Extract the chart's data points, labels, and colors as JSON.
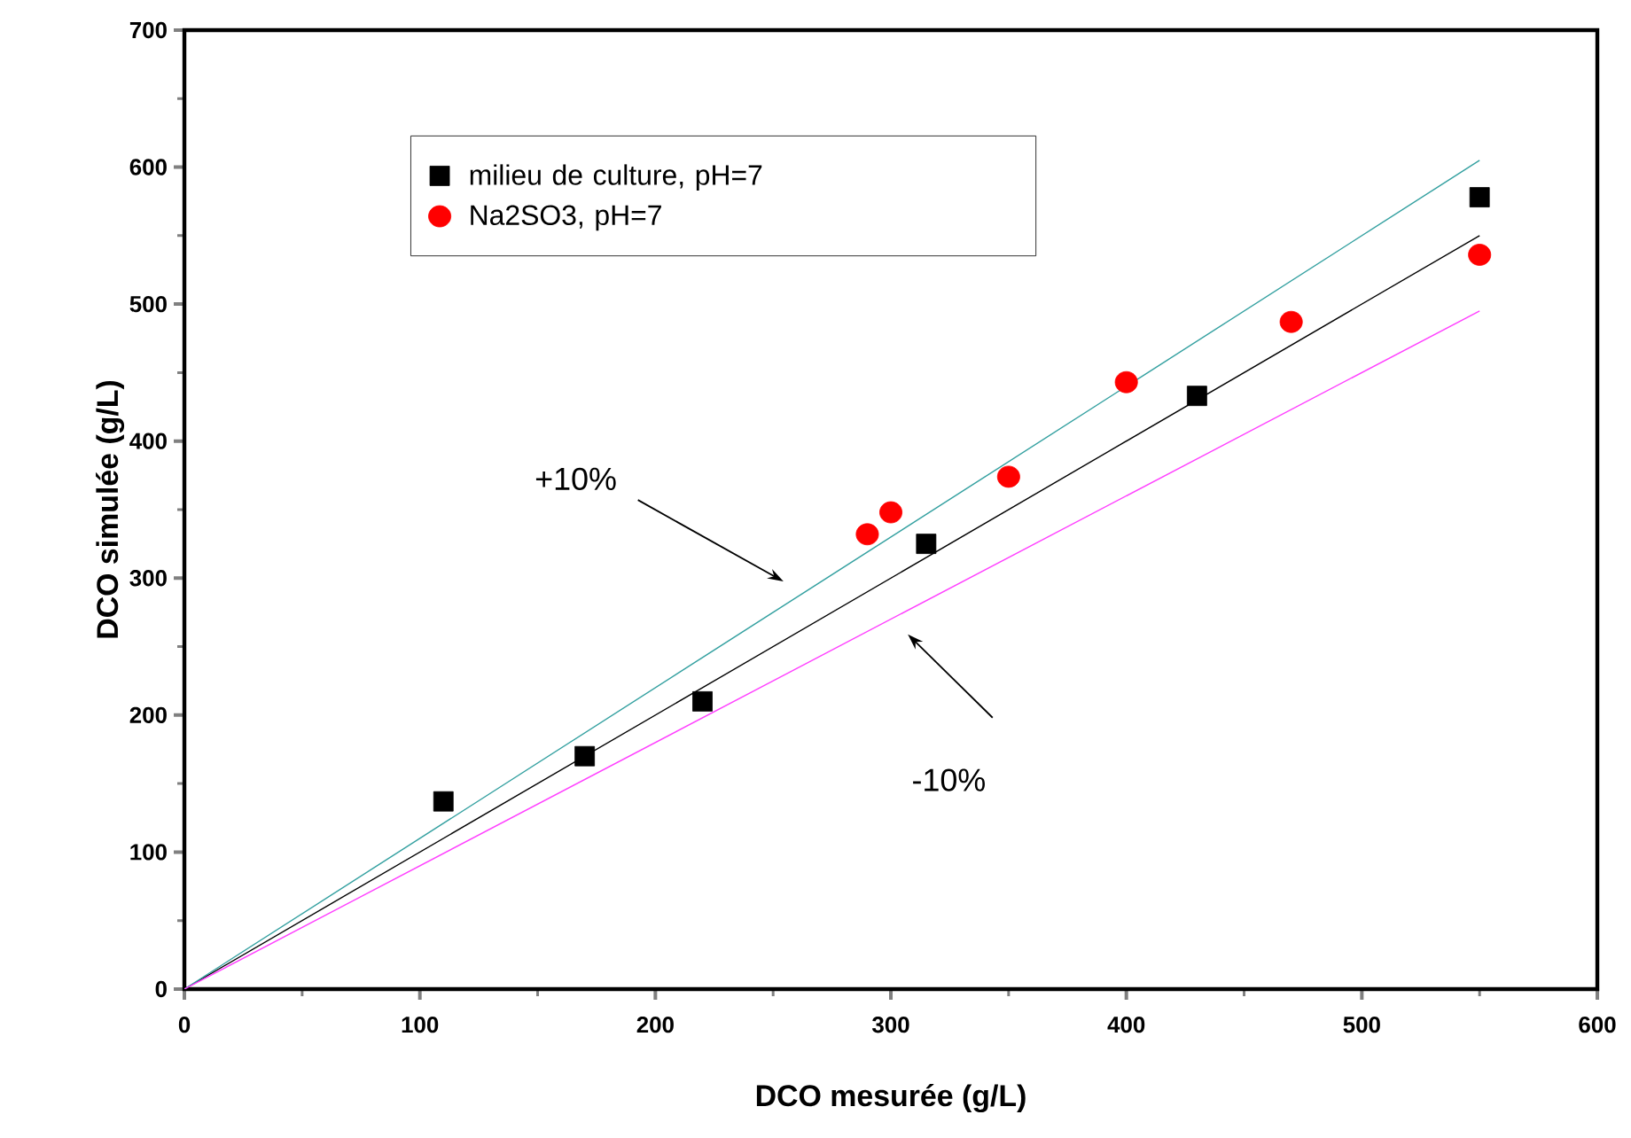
{
  "chart_data": {
    "type": "scatter",
    "xlabel": "DCO mesurée (g/L)",
    "ylabel": "DCO simulée (g/L)",
    "xlim": [
      0,
      600
    ],
    "ylim": [
      0,
      700
    ],
    "xticks": [
      0,
      100,
      200,
      300,
      400,
      500,
      600
    ],
    "yticks": [
      0,
      100,
      200,
      300,
      400,
      500,
      600,
      700
    ],
    "grid": false,
    "legend": "top left",
    "series": [
      {
        "name": "milieu de culture, pH=7",
        "color": "#000000",
        "marker": "square",
        "x": [
          110,
          170,
          220,
          315,
          430,
          550
        ],
        "values": [
          137,
          170,
          210,
          325,
          433,
          578
        ]
      },
      {
        "name": "Na2SO3, pH=7",
        "color": "#ff0000",
        "marker": "circle",
        "x": [
          290,
          300,
          350,
          400,
          470,
          550
        ],
        "values": [
          332,
          348,
          374,
          443,
          487,
          536
        ]
      },
      {
        "type": "line",
        "color": "#000000",
        "marker": "none",
        "x": [
          0,
          550
        ],
        "values": [
          0,
          550
        ]
      },
      {
        "type": "line",
        "color": "#33a0a0",
        "marker": "none",
        "x": [
          0,
          550
        ],
        "values": [
          0,
          605
        ]
      },
      {
        "type": "line",
        "color": "#ff40ff",
        "marker": "none",
        "x": [
          0,
          550
        ],
        "values": [
          0,
          495
        ]
      }
    ],
    "annotations": [
      "+10%",
      "-10%"
    ]
  }
}
